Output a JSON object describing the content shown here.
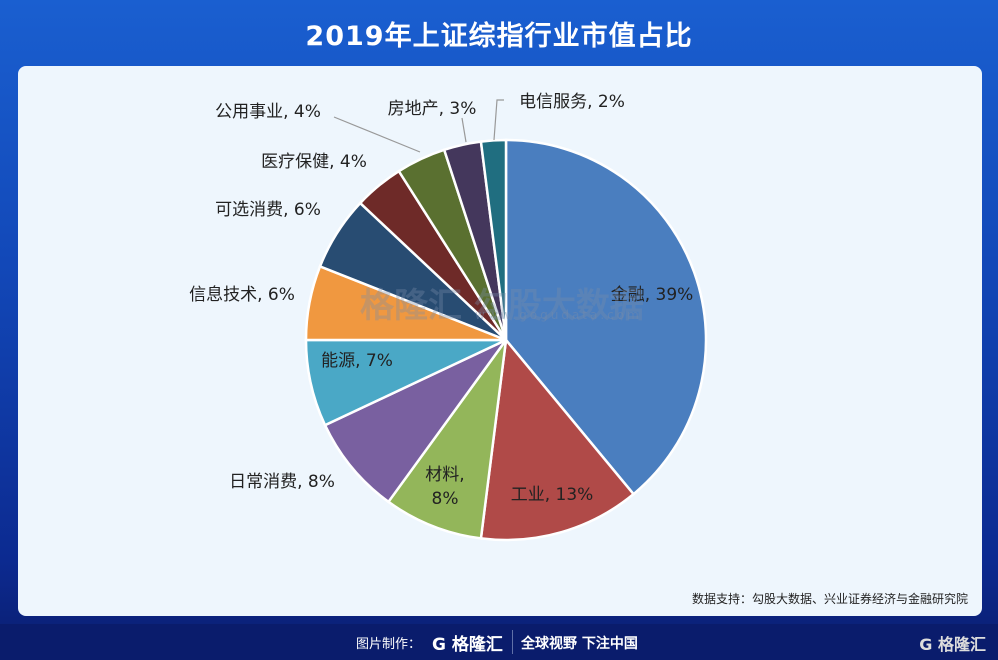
{
  "title": "2019年上证综指行业市值占比",
  "chart_data": {
    "type": "pie",
    "title": "2019年上证综指行业市值占比",
    "start": "12 o'clock, clockwise",
    "slices": [
      {
        "label": "金融",
        "value": 39,
        "color": "#4a7ebf"
      },
      {
        "label": "工业",
        "value": 13,
        "color": "#b04a48"
      },
      {
        "label": "材料",
        "value": 8,
        "color": "#93b65a"
      },
      {
        "label": "日常消费",
        "value": 8,
        "color": "#7960a0"
      },
      {
        "label": "能源",
        "value": 7,
        "color": "#4aa8c6"
      },
      {
        "label": "信息技术",
        "value": 6,
        "color": "#f09840"
      },
      {
        "label": "可选消费",
        "value": 6,
        "color": "#284c72"
      },
      {
        "label": "医疗保健",
        "value": 4,
        "color": "#6e2a28"
      },
      {
        "label": "公用事业",
        "value": 4,
        "color": "#5a7030"
      },
      {
        "label": "房地产",
        "value": 3,
        "color": "#44375c"
      },
      {
        "label": "电信服务",
        "value": 2,
        "color": "#206e80"
      }
    ]
  },
  "watermark": {
    "text": "格隆汇  勾股大数据",
    "url": "www.gogudata.com"
  },
  "source": "数据支持：勾股大数据、兴业证券经济与金融研究院",
  "footer": {
    "made_by": "图片制作：",
    "logo": "G 格隆汇",
    "slogan": "全球视野 下注中国",
    "logo_right": "G 格隆汇"
  }
}
